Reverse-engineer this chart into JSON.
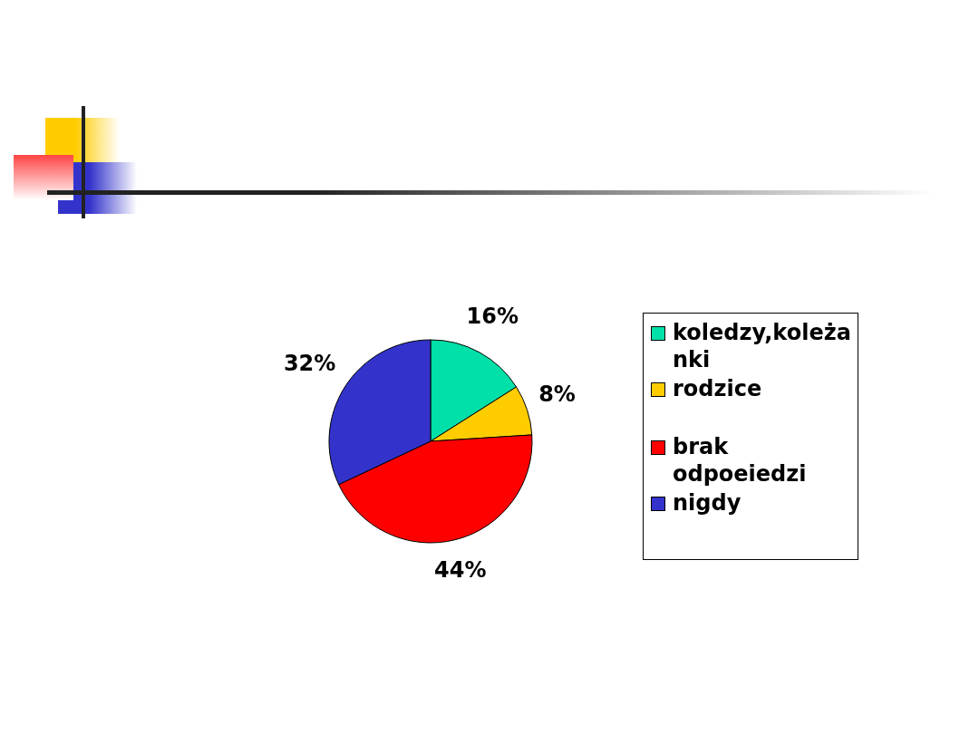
{
  "chart_data": {
    "type": "pie",
    "categories": [
      "koledzy,koleżanki",
      "rodzice",
      "brak odpoeiedzi",
      "nigdy"
    ],
    "values": [
      16,
      8,
      44,
      32
    ],
    "value_labels": [
      "16%",
      "8%",
      "44%",
      "32%"
    ],
    "colors": [
      "#00e0a8",
      "#ffcc00",
      "#ff0000",
      "#3333cc"
    ],
    "legend": "right"
  }
}
